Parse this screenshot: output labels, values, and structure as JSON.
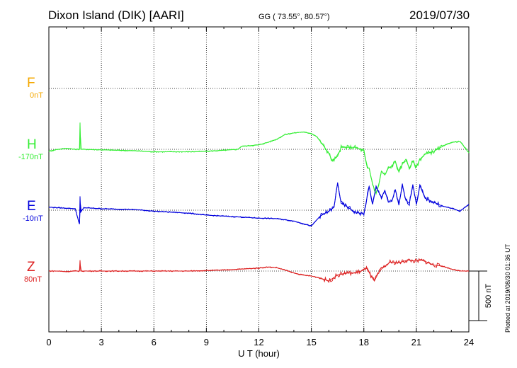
{
  "header": {
    "station": "Dixon Island (DIK)  [AARI]",
    "coords": "GG ( 73.55°,  80.57°)",
    "date": "2019/07/30"
  },
  "plotted_note": "Plotted at 2019/08/30 01:36 UT",
  "chart_data": {
    "type": "line",
    "xlabel": "U T (hour)",
    "xlim": [
      0,
      24
    ],
    "xticks": [
      "0",
      "3",
      "6",
      "9",
      "12",
      "15",
      "18",
      "21",
      "24"
    ],
    "scale_label": "500 nT",
    "grid": true,
    "series": [
      {
        "name": "F",
        "baseline": "0nT",
        "color": "#f5a800",
        "x": [],
        "y": []
      },
      {
        "name": "H",
        "baseline": "-170nT",
        "color": "#33ee33",
        "x": [
          0,
          0.5,
          1,
          1.5,
          1.75,
          1.78,
          1.82,
          2,
          3,
          4,
          5,
          6,
          7,
          8,
          9,
          10,
          10.8,
          11,
          12,
          12.5,
          13,
          13.5,
          14,
          14.5,
          15,
          15.3,
          15.6,
          16,
          16.2,
          16.5,
          16.7,
          17,
          17.5,
          18,
          18.1,
          18.2,
          18.3,
          18.5,
          18.7,
          18.9,
          19,
          19.2,
          19.4,
          19.6,
          19.8,
          20,
          20.2,
          20.4,
          20.6,
          20.8,
          21,
          21.2,
          21.5,
          22,
          22.5,
          23,
          23.5,
          24
        ],
        "y": [
          -20,
          0,
          10,
          0,
          0,
          270,
          0,
          0,
          -5,
          -10,
          -15,
          -25,
          -25,
          -25,
          -20,
          -10,
          0,
          30,
          45,
          70,
          100,
          150,
          165,
          175,
          160,
          130,
          60,
          -40,
          -120,
          -70,
          20,
          20,
          20,
          -15,
          -110,
          -190,
          -190,
          -350,
          -450,
          -320,
          -220,
          -260,
          -190,
          -170,
          -120,
          -230,
          -150,
          -100,
          -190,
          -120,
          -180,
          -100,
          -50,
          -20,
          30,
          70,
          80,
          -35
        ]
      },
      {
        "name": "E",
        "baseline": "-10nT",
        "color": "#0000dd",
        "x": [
          0,
          0.5,
          1,
          1.5,
          1.75,
          1.78,
          1.82,
          2,
          3,
          4,
          5,
          6,
          7,
          8,
          9,
          10,
          11,
          12,
          13,
          14,
          15,
          15.5,
          16,
          16.3,
          16.5,
          16.7,
          17,
          17.5,
          18,
          18.1,
          18.3,
          18.5,
          18.7,
          19,
          19.2,
          19.4,
          19.6,
          19.8,
          20,
          20.2,
          20.4,
          20.6,
          20.8,
          21,
          21.2,
          21.5,
          22,
          22.5,
          23,
          23.5,
          24
        ],
        "y": [
          30,
          25,
          20,
          15,
          -140,
          140,
          -20,
          25,
          15,
          10,
          5,
          -10,
          -20,
          -30,
          -50,
          -60,
          -70,
          -80,
          -85,
          -110,
          -160,
          -60,
          -10,
          30,
          280,
          70,
          40,
          -20,
          -40,
          50,
          240,
          60,
          230,
          130,
          200,
          80,
          90,
          210,
          50,
          250,
          100,
          70,
          260,
          60,
          250,
          120,
          80,
          40,
          20,
          -10,
          60
        ]
      },
      {
        "name": "Z",
        "baseline": "80nT",
        "color": "#dd2222",
        "x": [
          0,
          0.5,
          1,
          1.5,
          1.75,
          1.78,
          1.82,
          2,
          3,
          4,
          5,
          6,
          7,
          8,
          9,
          10,
          11,
          12,
          12.5,
          13,
          13.5,
          14,
          14.5,
          15,
          15.5,
          16,
          16.5,
          17,
          17.5,
          18,
          18.2,
          18.4,
          18.6,
          18.8,
          19,
          19.5,
          20,
          20.5,
          21,
          21.3,
          21.6,
          22,
          22.5,
          23,
          23.5,
          24
        ],
        "y": [
          0,
          0,
          -5,
          0,
          0,
          110,
          0,
          0,
          0,
          0,
          0,
          0,
          0,
          0,
          5,
          10,
          20,
          30,
          40,
          35,
          10,
          -20,
          -40,
          -50,
          -70,
          -100,
          -40,
          -20,
          -20,
          10,
          30,
          -50,
          -100,
          -30,
          20,
          90,
          85,
          110,
          100,
          110,
          90,
          60,
          50,
          20,
          0,
          0
        ]
      }
    ]
  }
}
